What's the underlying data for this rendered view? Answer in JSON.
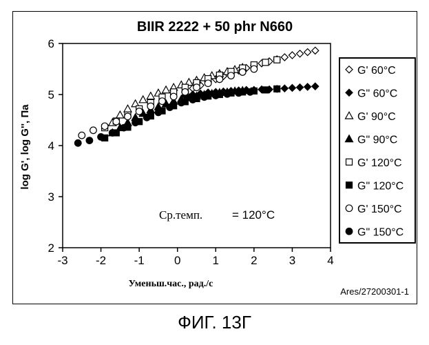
{
  "figure_caption": "ФИГ. 13Г",
  "chart_data": {
    "type": "scatter",
    "title": "BIIR 2222 + 50 phr N660",
    "xlabel": "Уменьш.час., рад./с",
    "ylabel": "log G', log G'', Па",
    "xlim": [
      -3,
      4
    ],
    "ylim": [
      2,
      6
    ],
    "xticks": [
      "-3",
      "-2",
      "-1",
      "0",
      "1",
      "2",
      "3",
      "4"
    ],
    "yticks": [
      "2",
      "3",
      "4",
      "5",
      "6"
    ],
    "annotation": "Ср.темп.",
    "annotation_value": "= 120°C",
    "reference_id": "Ares/27200301-1",
    "grid": false,
    "legend_position": "right",
    "series": [
      {
        "name": "G' 60°C",
        "marker": "diamond-open",
        "x": [
          0.2,
          0.4,
          0.6,
          0.8,
          1.0,
          1.2,
          1.4,
          1.6,
          1.8,
          2.0,
          2.2,
          2.4,
          2.6,
          2.8,
          3.0,
          3.2,
          3.4,
          3.6
        ],
        "y": [
          5.05,
          5.12,
          5.18,
          5.25,
          5.3,
          5.36,
          5.42,
          5.47,
          5.52,
          5.57,
          5.61,
          5.65,
          5.69,
          5.73,
          5.77,
          5.8,
          5.83,
          5.86
        ]
      },
      {
        "name": "G\" 60°C",
        "marker": "diamond-filled",
        "x": [
          0.2,
          0.4,
          0.6,
          0.8,
          1.0,
          1.2,
          1.4,
          1.6,
          1.8,
          2.0,
          2.2,
          2.4,
          2.6,
          2.8,
          3.0,
          3.2,
          3.4,
          3.6
        ],
        "y": [
          4.98,
          5.0,
          5.02,
          5.04,
          5.05,
          5.06,
          5.07,
          5.08,
          5.09,
          5.09,
          5.1,
          5.1,
          5.11,
          5.12,
          5.13,
          5.14,
          5.15,
          5.16
        ]
      },
      {
        "name": "G' 90°C",
        "marker": "triangle-open",
        "x": [
          -1.7,
          -1.5,
          -1.3,
          -1.1,
          -0.9,
          -0.7,
          -0.5,
          -0.3,
          -0.1,
          0.1,
          0.3,
          0.5,
          0.7,
          0.9,
          1.1,
          1.3,
          1.5,
          1.7
        ],
        "y": [
          4.45,
          4.6,
          4.72,
          4.82,
          4.9,
          4.97,
          5.03,
          5.09,
          5.14,
          5.19,
          5.24,
          5.28,
          5.33,
          5.37,
          5.41,
          5.45,
          5.49,
          5.53
        ]
      },
      {
        "name": "G\" 90°C",
        "marker": "triangle-filled",
        "x": [
          -1.7,
          -1.5,
          -1.3,
          -1.1,
          -0.9,
          -0.7,
          -0.5,
          -0.3,
          -0.1,
          0.1,
          0.3,
          0.5,
          0.7,
          0.9,
          1.1,
          1.3,
          1.5,
          1.7
        ],
        "y": [
          4.25,
          4.35,
          4.45,
          4.55,
          4.63,
          4.7,
          4.76,
          4.82,
          4.87,
          4.91,
          4.94,
          4.97,
          5.0,
          5.02,
          5.04,
          5.05,
          5.07,
          5.08
        ]
      },
      {
        "name": "G' 120°C",
        "marker": "square-open",
        "x": [
          -1.9,
          -1.6,
          -1.3,
          -1.0,
          -0.7,
          -0.4,
          -0.1,
          0.2,
          0.5,
          0.8,
          1.1,
          1.4,
          1.7,
          2.0,
          2.3,
          2.6
        ],
        "y": [
          4.35,
          4.48,
          4.6,
          4.72,
          4.84,
          4.95,
          5.05,
          5.14,
          5.23,
          5.31,
          5.38,
          5.45,
          5.52,
          5.58,
          5.63,
          5.68
        ]
      },
      {
        "name": "G\" 120°C",
        "marker": "square-filled",
        "x": [
          -1.9,
          -1.6,
          -1.3,
          -1.0,
          -0.7,
          -0.4,
          -0.1,
          0.2,
          0.5,
          0.8,
          1.1,
          1.4,
          1.7,
          2.0,
          2.3,
          2.6
        ],
        "y": [
          4.15,
          4.25,
          4.36,
          4.47,
          4.58,
          4.68,
          4.78,
          4.86,
          4.92,
          4.97,
          5.0,
          5.03,
          5.05,
          5.07,
          5.09,
          5.11
        ]
      },
      {
        "name": "G' 150°C",
        "marker": "circle-open",
        "x": [
          -2.5,
          -2.2,
          -1.9,
          -1.6,
          -1.3,
          -1.0,
          -0.7,
          -0.4,
          -0.1,
          0.2,
          0.5,
          0.8,
          1.1,
          1.4,
          1.7,
          2.0
        ],
        "y": [
          4.2,
          4.3,
          4.38,
          4.47,
          4.57,
          4.67,
          4.77,
          4.87,
          4.96,
          5.05,
          5.14,
          5.22,
          5.3,
          5.37,
          5.44,
          5.5
        ]
      },
      {
        "name": "G\" 150°C",
        "marker": "circle-filled",
        "x": [
          -2.6,
          -2.3,
          -2.0,
          -1.7,
          -1.4,
          -1.1,
          -0.8,
          -0.5,
          -0.2,
          0.1,
          0.4,
          0.7,
          1.0,
          1.3,
          1.6,
          1.9
        ],
        "y": [
          4.05,
          4.1,
          4.17,
          4.25,
          4.35,
          4.45,
          4.55,
          4.65,
          4.75,
          4.84,
          4.9,
          4.95,
          4.98,
          5.01,
          5.03,
          5.05
        ]
      }
    ]
  }
}
